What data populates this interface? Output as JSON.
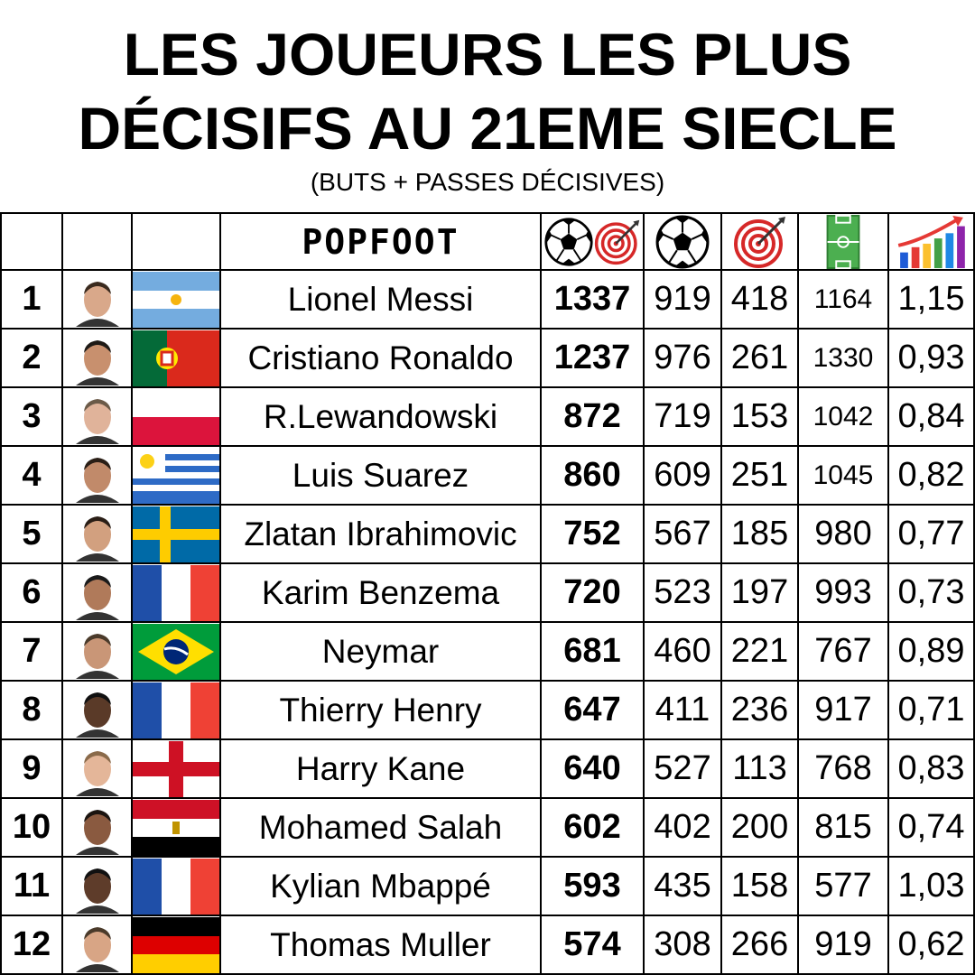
{
  "header": {
    "title_lines": [
      "LES JOUEURS LES PLUS",
      "DÉCISIFS AU 21EME SIECLE"
    ],
    "subtitle": "(BUTS + PASSES DÉCISIVES)",
    "logo": "POPFOOT"
  },
  "table": {
    "rows": [
      [
        "1",
        "Lionel Messi",
        "1337",
        "919",
        "418",
        "1164",
        "1,15"
      ],
      [
        "2",
        "Cristiano Ronaldo",
        "1237",
        "976",
        "261",
        "1330",
        "0,93"
      ],
      [
        "3",
        "R.Lewandowski",
        "872",
        "719",
        "153",
        "1042",
        "0,84"
      ],
      [
        "4",
        "Luis Suarez",
        "860",
        "609",
        "251",
        "1045",
        "0,82"
      ],
      [
        "5",
        "Zlatan Ibrahimovic",
        "752",
        "567",
        "185",
        "980",
        "0,77"
      ],
      [
        "6",
        "Karim Benzema",
        "720",
        "523",
        "197",
        "993",
        "0,73"
      ],
      [
        "7",
        "Neymar",
        "681",
        "460",
        "221",
        "767",
        "0,89"
      ],
      [
        "8",
        "Thierry Henry",
        "647",
        "411",
        "236",
        "917",
        "0,71"
      ],
      [
        "9",
        "Harry Kane",
        "640",
        "527",
        "113",
        "768",
        "0,83"
      ],
      [
        "10",
        "Mohamed Salah",
        "602",
        "402",
        "200",
        "815",
        "0,74"
      ],
      [
        "11",
        "Kylian Mbappé",
        "593",
        "435",
        "158",
        "577",
        "1,03"
      ],
      [
        "12",
        "Thomas Muller",
        "574",
        "308",
        "266",
        "919",
        "0,62"
      ]
    ]
  }
}
